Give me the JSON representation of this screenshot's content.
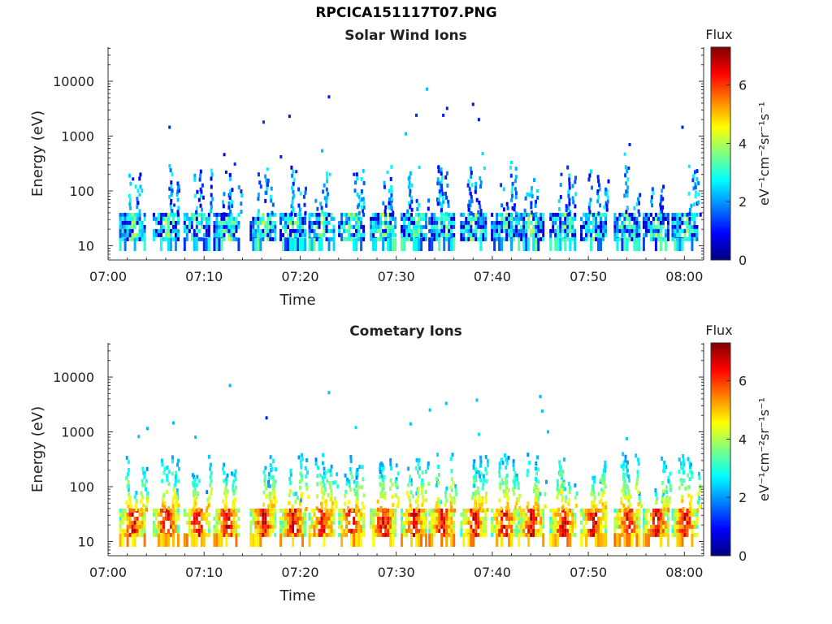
{
  "title": "RPCICA151117T07.PNG",
  "colormap": [
    "#00007f",
    "#0000ff",
    "#0080ff",
    "#00ffff",
    "#80ff80",
    "#ffff00",
    "#ff8000",
    "#ff0000",
    "#7f0000"
  ],
  "chart_data": [
    {
      "type": "heatmap",
      "title": "Solar Wind Ions",
      "xlabel": "Time",
      "ylabel": "Energy (eV)",
      "x_ticks": [
        "07:00",
        "07:10",
        "07:20",
        "07:30",
        "07:40",
        "07:50",
        "08:00"
      ],
      "y_ticks": [
        "10",
        "100",
        "1000",
        "10000"
      ],
      "y_scale": "log",
      "xlim_minutes": [
        0,
        62
      ],
      "ylim": [
        5.5,
        42000
      ],
      "colorbar": {
        "title": "Flux",
        "label": "eV⁻¹cm⁻²sr⁻¹s⁻¹",
        "ticks": [
          "0",
          "2",
          "4",
          "6"
        ],
        "range": [
          0,
          7.3
        ]
      },
      "scans_minutes": [
        2.5,
        6.0,
        9.2,
        12.3,
        16.1,
        19.2,
        22.2,
        25.3,
        28.6,
        31.8,
        34.7,
        38.0,
        41.2,
        44.0,
        47.3,
        50.5,
        54.0,
        57.0,
        60.0
      ],
      "core_energy_ev": [
        14,
        40
      ],
      "core_flux": 3.6,
      "sparse_points": [
        {
          "t": 2.6,
          "e": 165,
          "f": 1.1
        },
        {
          "t": 3.3,
          "e": 85,
          "f": 2.5
        },
        {
          "t": 6.4,
          "e": 1450,
          "f": 1.2
        },
        {
          "t": 6.9,
          "e": 55,
          "f": 1.3
        },
        {
          "t": 9.3,
          "e": 95,
          "f": 1.0
        },
        {
          "t": 12.1,
          "e": 460,
          "f": 0.9
        },
        {
          "t": 12.3,
          "e": 220,
          "f": 1.0
        },
        {
          "t": 13.2,
          "e": 310,
          "f": 1.2
        },
        {
          "t": 16.2,
          "e": 1800,
          "f": 1.3
        },
        {
          "t": 16.6,
          "e": 250,
          "f": 2.6
        },
        {
          "t": 18.0,
          "e": 420,
          "f": 1.1
        },
        {
          "t": 18.9,
          "e": 2300,
          "f": 1.0
        },
        {
          "t": 19.6,
          "e": 225,
          "f": 1.2
        },
        {
          "t": 22.3,
          "e": 540,
          "f": 2.2
        },
        {
          "t": 23.0,
          "e": 5200,
          "f": 1.1
        },
        {
          "t": 23.1,
          "e": 200,
          "f": 2.6
        },
        {
          "t": 25.6,
          "e": 200,
          "f": 1.1
        },
        {
          "t": 29.1,
          "e": 220,
          "f": 2.6
        },
        {
          "t": 31.0,
          "e": 1100,
          "f": 2.3
        },
        {
          "t": 32.1,
          "e": 2400,
          "f": 1.2
        },
        {
          "t": 32.4,
          "e": 270,
          "f": 2.6
        },
        {
          "t": 33.2,
          "e": 7200,
          "f": 2.3
        },
        {
          "t": 34.4,
          "e": 270,
          "f": 1.0
        },
        {
          "t": 34.9,
          "e": 2400,
          "f": 1.1
        },
        {
          "t": 35.3,
          "e": 3200,
          "f": 1.1
        },
        {
          "t": 38.0,
          "e": 3800,
          "f": 1.0
        },
        {
          "t": 38.6,
          "e": 2000,
          "f": 1.0
        },
        {
          "t": 39.0,
          "e": 480,
          "f": 2.5
        },
        {
          "t": 39.2,
          "e": 260,
          "f": 2.6
        },
        {
          "t": 42.0,
          "e": 330,
          "f": 2.6
        },
        {
          "t": 44.7,
          "e": 100,
          "f": 2.6
        },
        {
          "t": 47.2,
          "e": 200,
          "f": 1.2
        },
        {
          "t": 51.0,
          "e": 100,
          "f": 1.0
        },
        {
          "t": 53.8,
          "e": 470,
          "f": 2.6
        },
        {
          "t": 54.3,
          "e": 700,
          "f": 1.1
        },
        {
          "t": 54.2,
          "e": 260,
          "f": 1.2
        },
        {
          "t": 59.8,
          "e": 1450,
          "f": 1.1
        },
        {
          "t": 60.5,
          "e": 280,
          "f": 2.6
        }
      ]
    },
    {
      "type": "heatmap",
      "title": "Cometary Ions",
      "xlabel": "Time",
      "ylabel": "Energy (eV)",
      "x_ticks": [
        "07:00",
        "07:10",
        "07:20",
        "07:30",
        "07:40",
        "07:50",
        "08:00"
      ],
      "y_ticks": [
        "10",
        "100",
        "1000",
        "10000"
      ],
      "y_scale": "log",
      "xlim_minutes": [
        0,
        62
      ],
      "ylim": [
        5.5,
        42000
      ],
      "colorbar": {
        "title": "Flux",
        "label": "eV⁻¹cm⁻²sr⁻¹s⁻¹",
        "ticks": [
          "0",
          "2",
          "4",
          "6"
        ],
        "range": [
          0,
          7.3
        ]
      },
      "scans_minutes": [
        2.5,
        6.0,
        9.2,
        12.3,
        16.1,
        19.2,
        22.2,
        25.3,
        28.6,
        31.8,
        34.7,
        38.0,
        41.2,
        44.0,
        47.3,
        50.5,
        54.0,
        57.0,
        60.0
      ],
      "core_energy_ev": [
        14,
        40
      ],
      "core_flux": 6.6,
      "sparse_points": [
        {
          "t": 3.2,
          "e": 820,
          "f": 2.3
        },
        {
          "t": 4.1,
          "e": 1150,
          "f": 2.2
        },
        {
          "t": 6.8,
          "e": 1450,
          "f": 2.2
        },
        {
          "t": 9.1,
          "e": 800,
          "f": 2.3
        },
        {
          "t": 12.7,
          "e": 7000,
          "f": 2.2
        },
        {
          "t": 16.5,
          "e": 1800,
          "f": 1.1
        },
        {
          "t": 23.0,
          "e": 5200,
          "f": 2.3
        },
        {
          "t": 25.8,
          "e": 1200,
          "f": 2.5
        },
        {
          "t": 31.5,
          "e": 1400,
          "f": 2.3
        },
        {
          "t": 33.5,
          "e": 2500,
          "f": 2.3
        },
        {
          "t": 35.2,
          "e": 3300,
          "f": 2.3
        },
        {
          "t": 38.4,
          "e": 3800,
          "f": 2.3
        },
        {
          "t": 38.6,
          "e": 900,
          "f": 2.5
        },
        {
          "t": 45.0,
          "e": 4400,
          "f": 2.2
        },
        {
          "t": 45.2,
          "e": 2400,
          "f": 2.3
        },
        {
          "t": 45.8,
          "e": 1000,
          "f": 2.3
        },
        {
          "t": 54.0,
          "e": 750,
          "f": 2.4
        }
      ]
    }
  ]
}
